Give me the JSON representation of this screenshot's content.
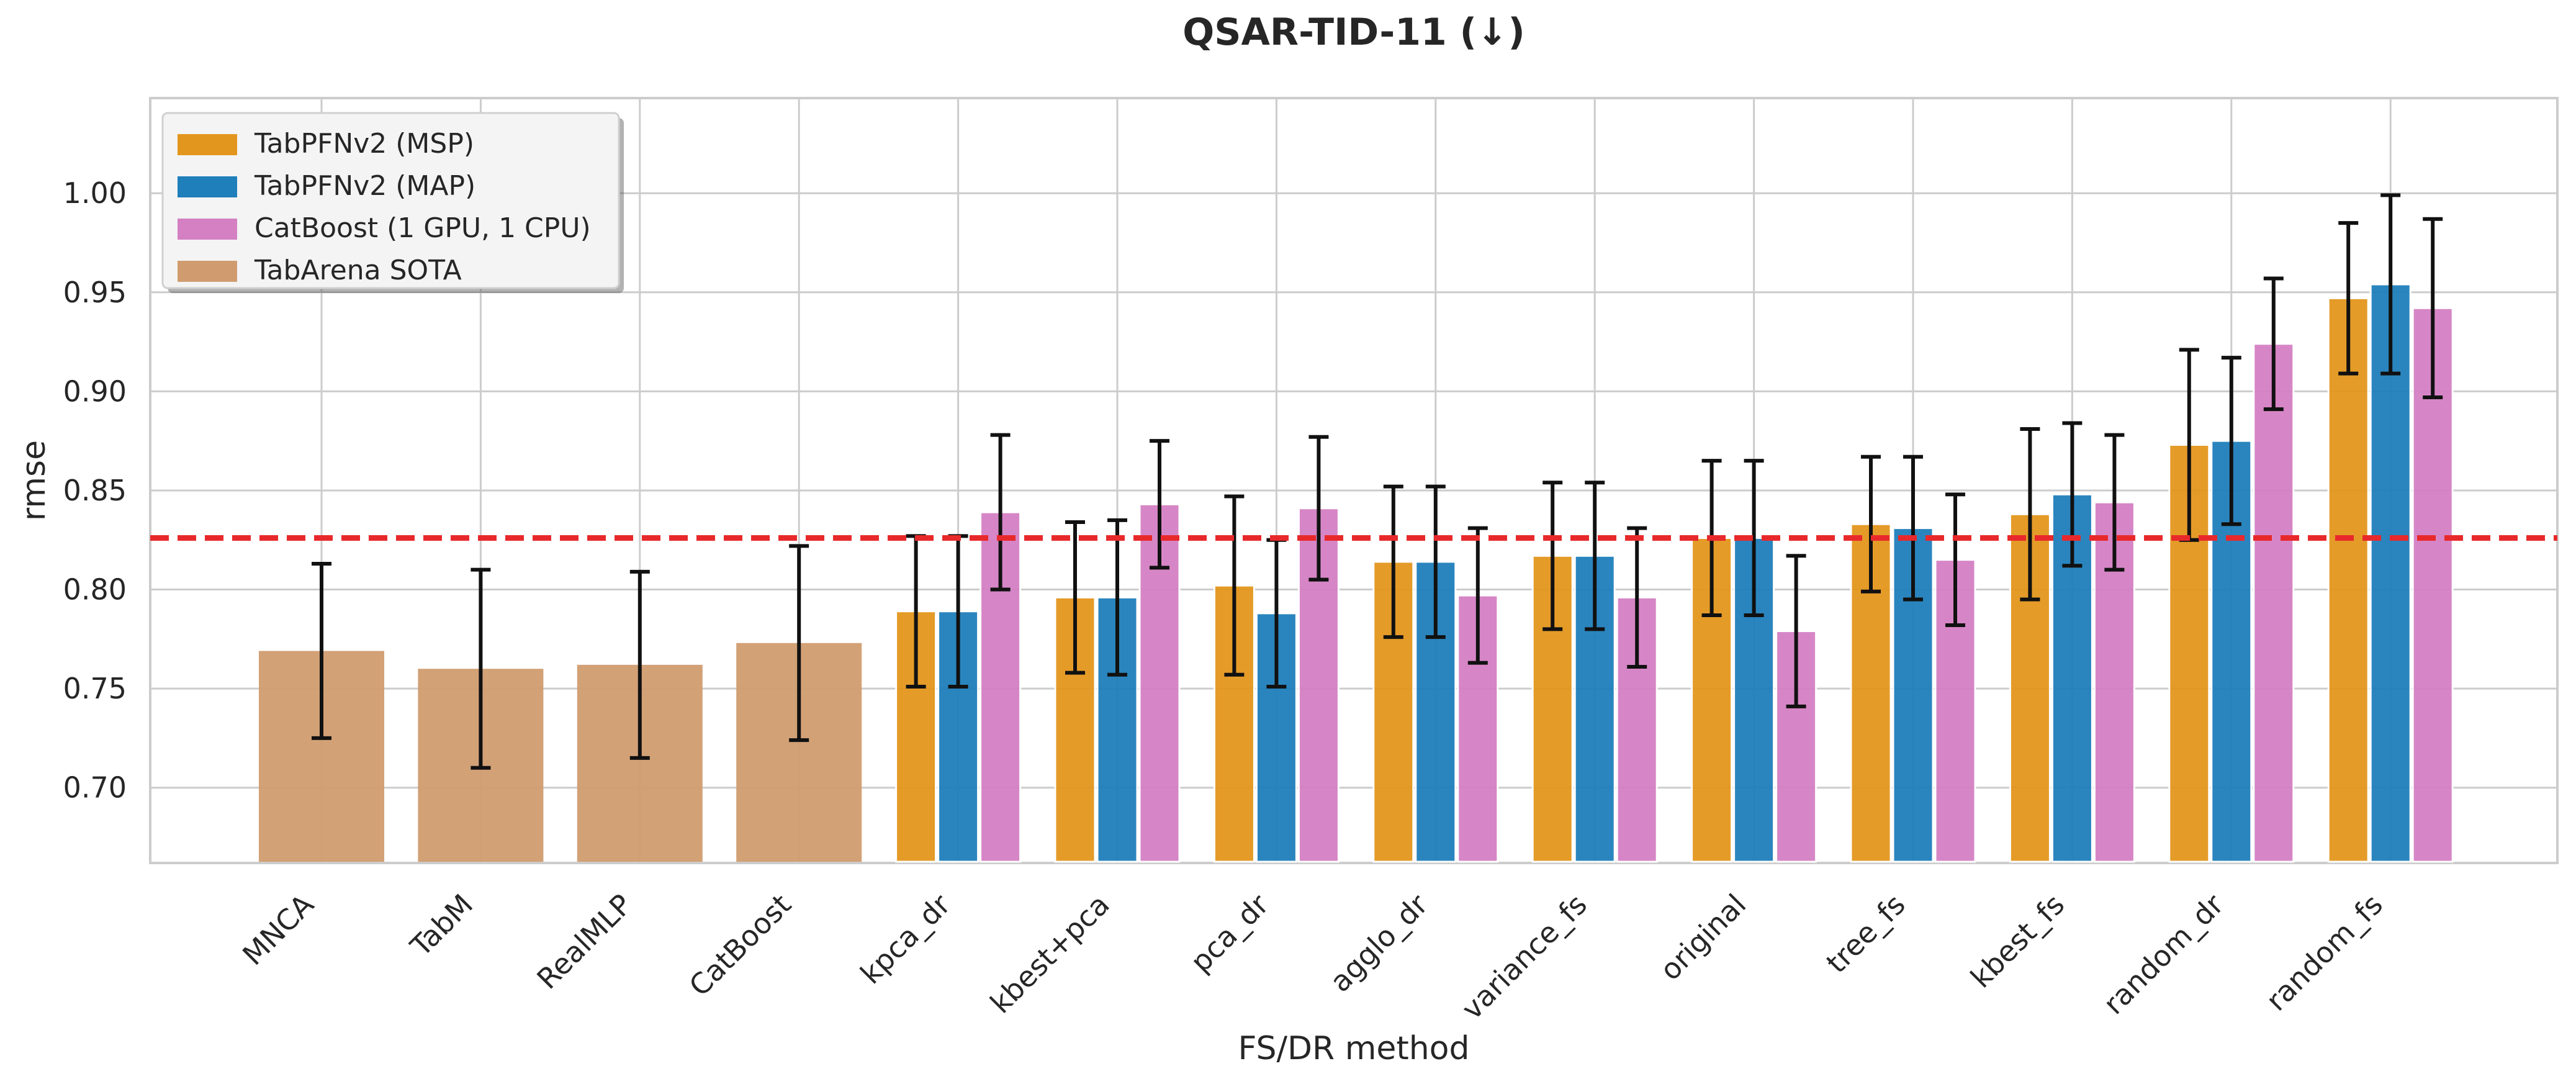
{
  "chart_data": {
    "type": "bar",
    "title": "QSAR-TID-11 (↓)",
    "xlabel": "FS/DR method",
    "ylabel": "rmse",
    "ylim": [
      0.662,
      1.048
    ],
    "yticks": [
      "0.70",
      "0.75",
      "0.80",
      "0.85",
      "0.90",
      "0.95",
      "1.00"
    ],
    "grid": true,
    "legend_position": "top-left",
    "reference_line": {
      "value": 0.826,
      "color": "#e8292b",
      "style": "dashed"
    },
    "colors": {
      "TabPFNv2 (MSP)": "#e3961d",
      "TabPFNv2 (MAP)": "#1f7fbb",
      "CatBoost (1 GPU, 1 CPU)": "#d480c3",
      "TabArena SOTA": "#d09c6f"
    },
    "legend": [
      "TabPFNv2 (MSP)",
      "TabPFNv2 (MAP)",
      "CatBoost (1 GPU, 1 CPU)",
      "TabArena SOTA"
    ],
    "baselines": {
      "series": "TabArena SOTA",
      "categories": [
        "MNCA",
        "TabM",
        "RealMLP",
        "CatBoost"
      ],
      "values": [
        0.769,
        0.76,
        0.762,
        0.773
      ],
      "err": [
        0.044,
        0.05,
        0.047,
        0.049
      ]
    },
    "categories": [
      "kpca_dr",
      "kbest+pca",
      "pca_dr",
      "agglo_dr",
      "variance_fs",
      "original",
      "tree_fs",
      "kbest_fs",
      "random_dr",
      "random_fs"
    ],
    "series": [
      {
        "name": "TabPFNv2 (MSP)",
        "values": [
          0.789,
          0.796,
          0.802,
          0.814,
          0.817,
          0.826,
          0.833,
          0.838,
          0.873,
          0.947
        ],
        "err": [
          0.038,
          0.038,
          0.045,
          0.038,
          0.037,
          0.039,
          0.034,
          0.043,
          0.048,
          0.038
        ]
      },
      {
        "name": "TabPFNv2 (MAP)",
        "values": [
          0.789,
          0.796,
          0.788,
          0.814,
          0.817,
          0.826,
          0.831,
          0.848,
          0.875,
          0.954
        ],
        "err": [
          0.038,
          0.039,
          0.037,
          0.038,
          0.037,
          0.039,
          0.036,
          0.036,
          0.042,
          0.045
        ]
      },
      {
        "name": "CatBoost (1 GPU, 1 CPU)",
        "values": [
          0.839,
          0.843,
          0.841,
          0.797,
          0.796,
          0.779,
          0.815,
          0.844,
          0.924,
          0.942
        ],
        "err": [
          0.039,
          0.032,
          0.036,
          0.034,
          0.035,
          0.038,
          0.033,
          0.034,
          0.033,
          0.045
        ]
      }
    ]
  }
}
